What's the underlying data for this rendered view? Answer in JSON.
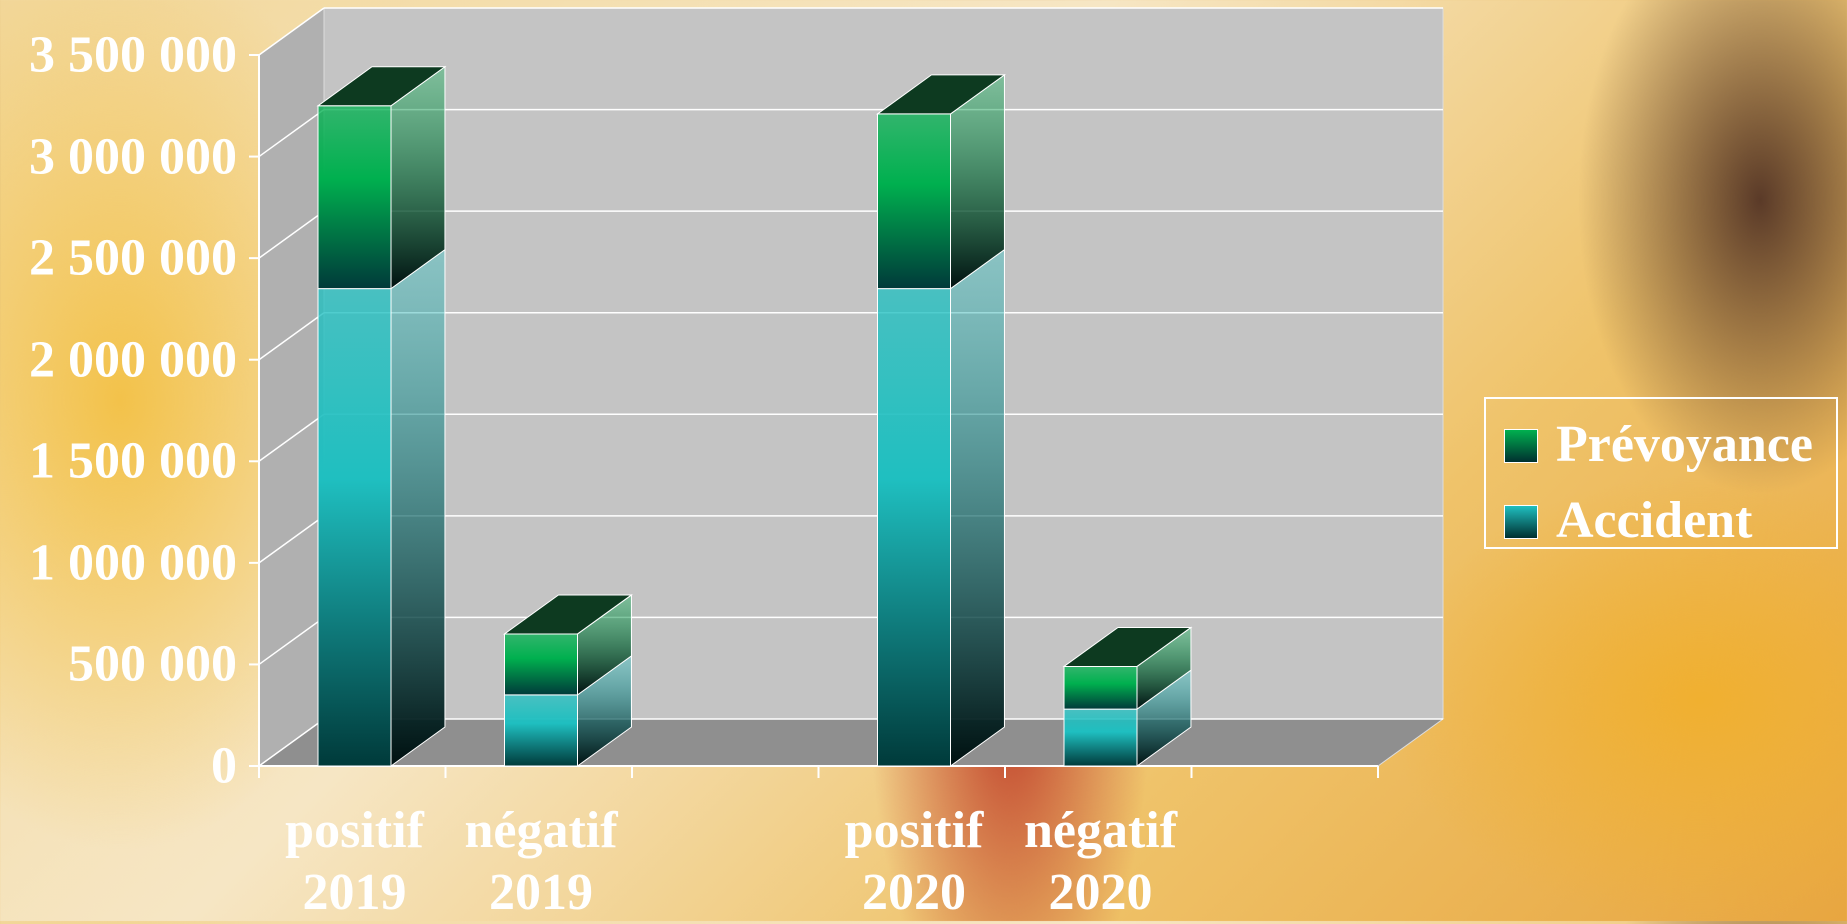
{
  "chart_data": {
    "type": "bar3d-stacked",
    "categories": [
      "positif 2019",
      "négatif 2019",
      null,
      "positif 2020",
      "négatif 2020",
      null
    ],
    "series": [
      {
        "name": "Accident",
        "color": "#1fbfc0",
        "values": [
          2350000,
          350000,
          null,
          2350000,
          280000,
          null
        ]
      },
      {
        "name": "Prévoyance",
        "color": "#00b04f",
        "values": [
          900000,
          300000,
          null,
          860000,
          210000,
          null
        ]
      }
    ],
    "ylim": [
      0,
      3500000
    ],
    "yticks": [
      0,
      {
        "value": 500000,
        "label": "500 000"
      },
      {
        "value": 1000000,
        "label": "1 000 000"
      },
      {
        "value": 1500000,
        "label": "1 500 000"
      },
      {
        "value": 2000000,
        "label": "2 000 000"
      },
      {
        "value": 2500000,
        "label": "2 500 000"
      },
      {
        "value": 3000000,
        "label": "3 000 000"
      },
      {
        "value": 3500000,
        "label": "3 500 000"
      }
    ],
    "grid": true,
    "legend": "right"
  }
}
